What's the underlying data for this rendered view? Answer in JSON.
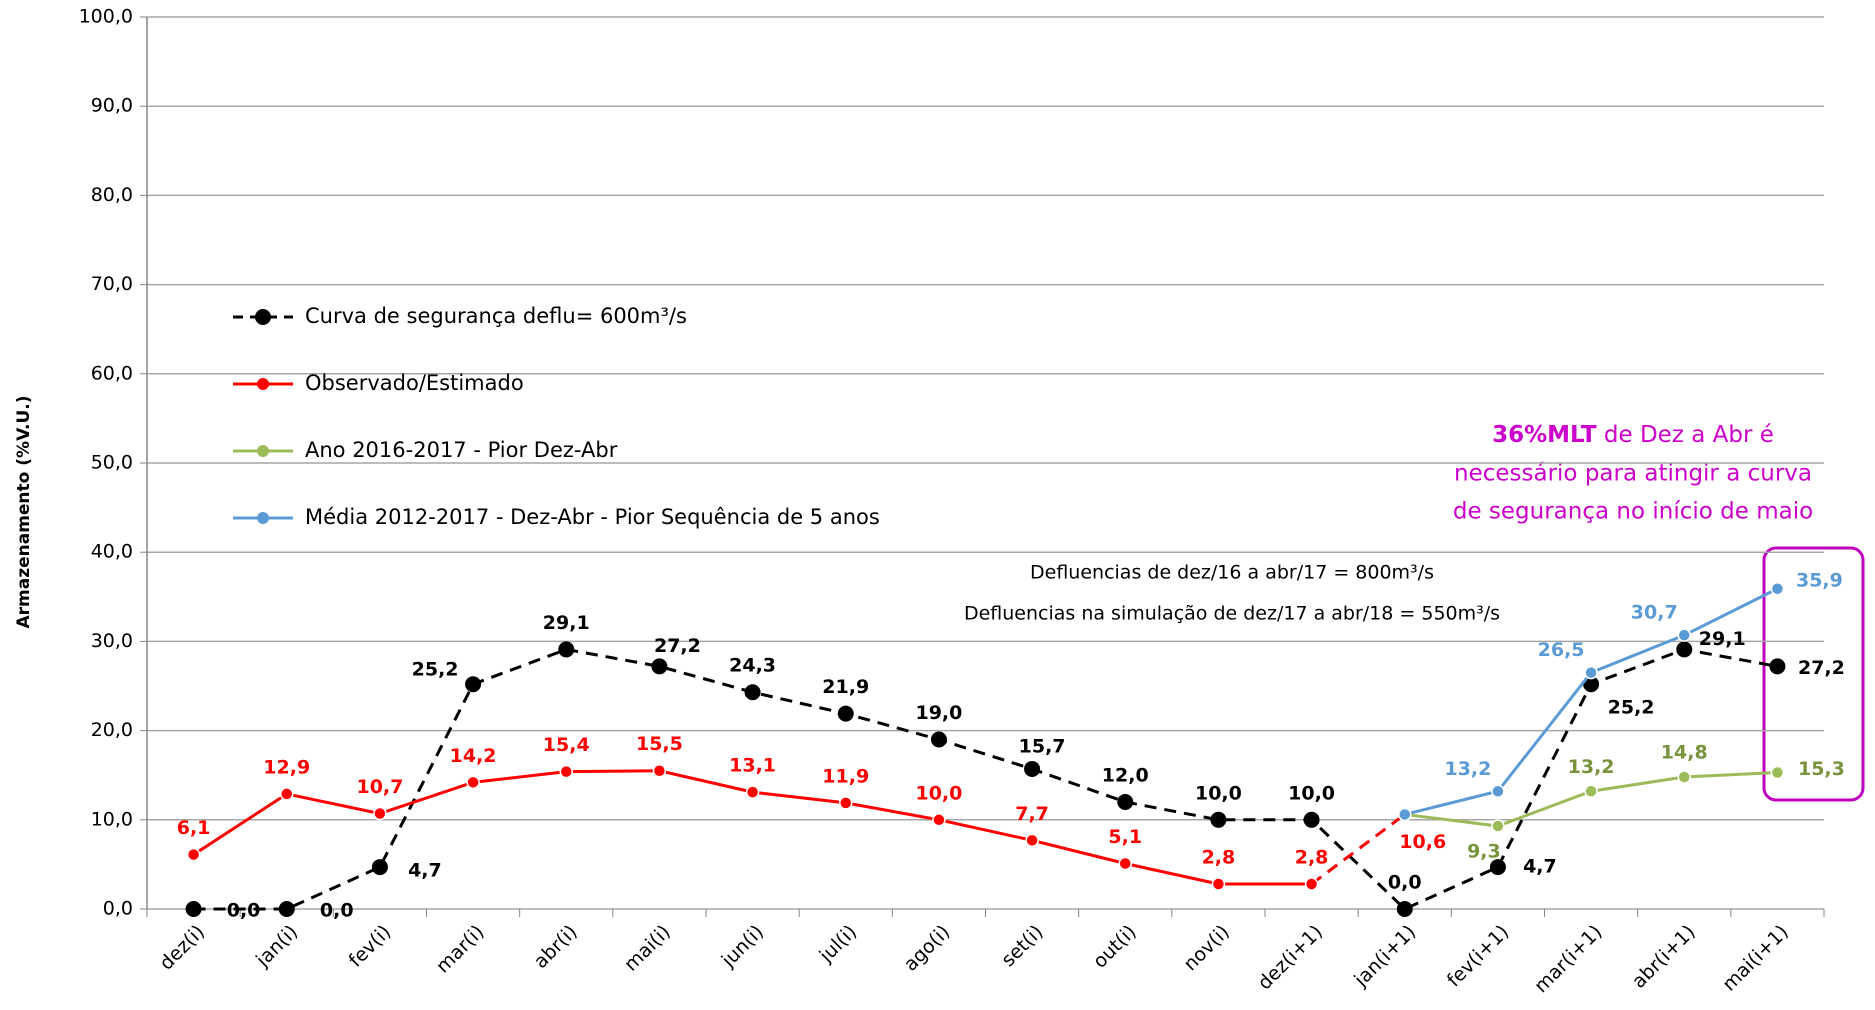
{
  "chart_data": {
    "type": "line",
    "y_label": "Armazenamento (%V.U.)",
    "categories": [
      "dez(i)",
      "jan(i)",
      "fev(i)",
      "mar(i)",
      "abr(i)",
      "mai(i)",
      "jun(i)",
      "jul(i)",
      "ago(i)",
      "set(i)",
      "out(i)",
      "nov(i)",
      "dez(i+1)",
      "jan(i+1)",
      "fev(i+1)",
      "mar(i+1)",
      "abr(i+1)",
      "mai(i+1)"
    ],
    "ylim": [
      0,
      100
    ],
    "yticks": [
      {
        "value": 0,
        "label": "0,0"
      },
      {
        "value": 10,
        "label": "10,0"
      },
      {
        "value": 20,
        "label": "20,0"
      },
      {
        "value": 30,
        "label": "30,0"
      },
      {
        "value": 40,
        "label": "40,0"
      },
      {
        "value": 50,
        "label": "50,0"
      },
      {
        "value": 60,
        "label": "60,0"
      },
      {
        "value": 70,
        "label": "70,0"
      },
      {
        "value": 80,
        "label": "80,0"
      },
      {
        "value": 90,
        "label": "90,0"
      },
      {
        "value": 100,
        "label": "100,0"
      }
    ],
    "grid": true,
    "series": [
      {
        "name": "Curva de segurança deflu= 600m³/s",
        "color": "#000000",
        "dashed": true,
        "values": [
          0.0,
          0.0,
          4.7,
          25.2,
          29.1,
          27.2,
          24.3,
          21.9,
          19.0,
          15.7,
          12.0,
          10.0,
          10.0,
          0.0,
          4.7,
          25.2,
          29.1,
          27.2
        ],
        "value_labels": [
          "0,0",
          "0,0",
          "4,7",
          "25,2",
          "29,1",
          "27,2",
          "24,3",
          "21,9",
          "19,0",
          "15,7",
          "12,0",
          "10,0",
          "10,0",
          "0,0",
          "4,7",
          "25,2",
          "29,1",
          "27,2"
        ]
      },
      {
        "name": "Observado/Estimado",
        "color": "#ff0000",
        "dashed": false,
        "dashed_from": 12,
        "values": [
          6.1,
          12.9,
          10.7,
          14.2,
          15.4,
          15.5,
          13.1,
          11.9,
          10.0,
          7.7,
          5.1,
          2.8,
          2.8,
          10.6,
          null,
          null,
          null,
          null
        ],
        "value_labels": [
          "6,1",
          "12,9",
          "10,7",
          "14,2",
          "15,4",
          "15,5",
          "13,1",
          "11,9",
          "10,0",
          "7,7",
          "5,1",
          "2,8",
          "2,8",
          "10,6",
          null,
          null,
          null,
          null
        ]
      },
      {
        "name": "Ano 2016-2017 - Pior Dez-Abr",
        "color": "#9bbb59",
        "label_color": "#77933c",
        "dashed": false,
        "values": [
          null,
          null,
          null,
          null,
          null,
          null,
          null,
          null,
          null,
          null,
          null,
          null,
          null,
          10.6,
          9.3,
          13.2,
          14.8,
          15.3
        ],
        "value_labels": [
          null,
          null,
          null,
          null,
          null,
          null,
          null,
          null,
          null,
          null,
          null,
          null,
          null,
          null,
          "9,3",
          "13,2",
          "14,8",
          "15,3"
        ]
      },
      {
        "name": "Média 2012-2017 - Dez-Abr - Pior Sequência de 5 anos",
        "color": "#5b9bd5",
        "dashed": false,
        "values": [
          null,
          null,
          null,
          null,
          null,
          null,
          null,
          null,
          null,
          null,
          null,
          null,
          null,
          10.6,
          13.2,
          26.5,
          30.7,
          35.9
        ],
        "value_labels": [
          null,
          null,
          null,
          null,
          null,
          null,
          null,
          null,
          null,
          null,
          null,
          null,
          null,
          null,
          "13,2",
          "26,5",
          "30,7",
          "35,9"
        ]
      }
    ],
    "annotations": {
      "highlight_bold": "36%MLT",
      "highlight_line1": " de Dez a Abr é",
      "highlight_line2": "necessário para atingir a curva",
      "highlight_line3": "de segurança no início de maio",
      "note1": "Defluencias de dez/16 a abr/17 = 800m³/s",
      "note2": "Defluencias na simulação de dez/17 a abr/18 = 550m³/s"
    }
  }
}
